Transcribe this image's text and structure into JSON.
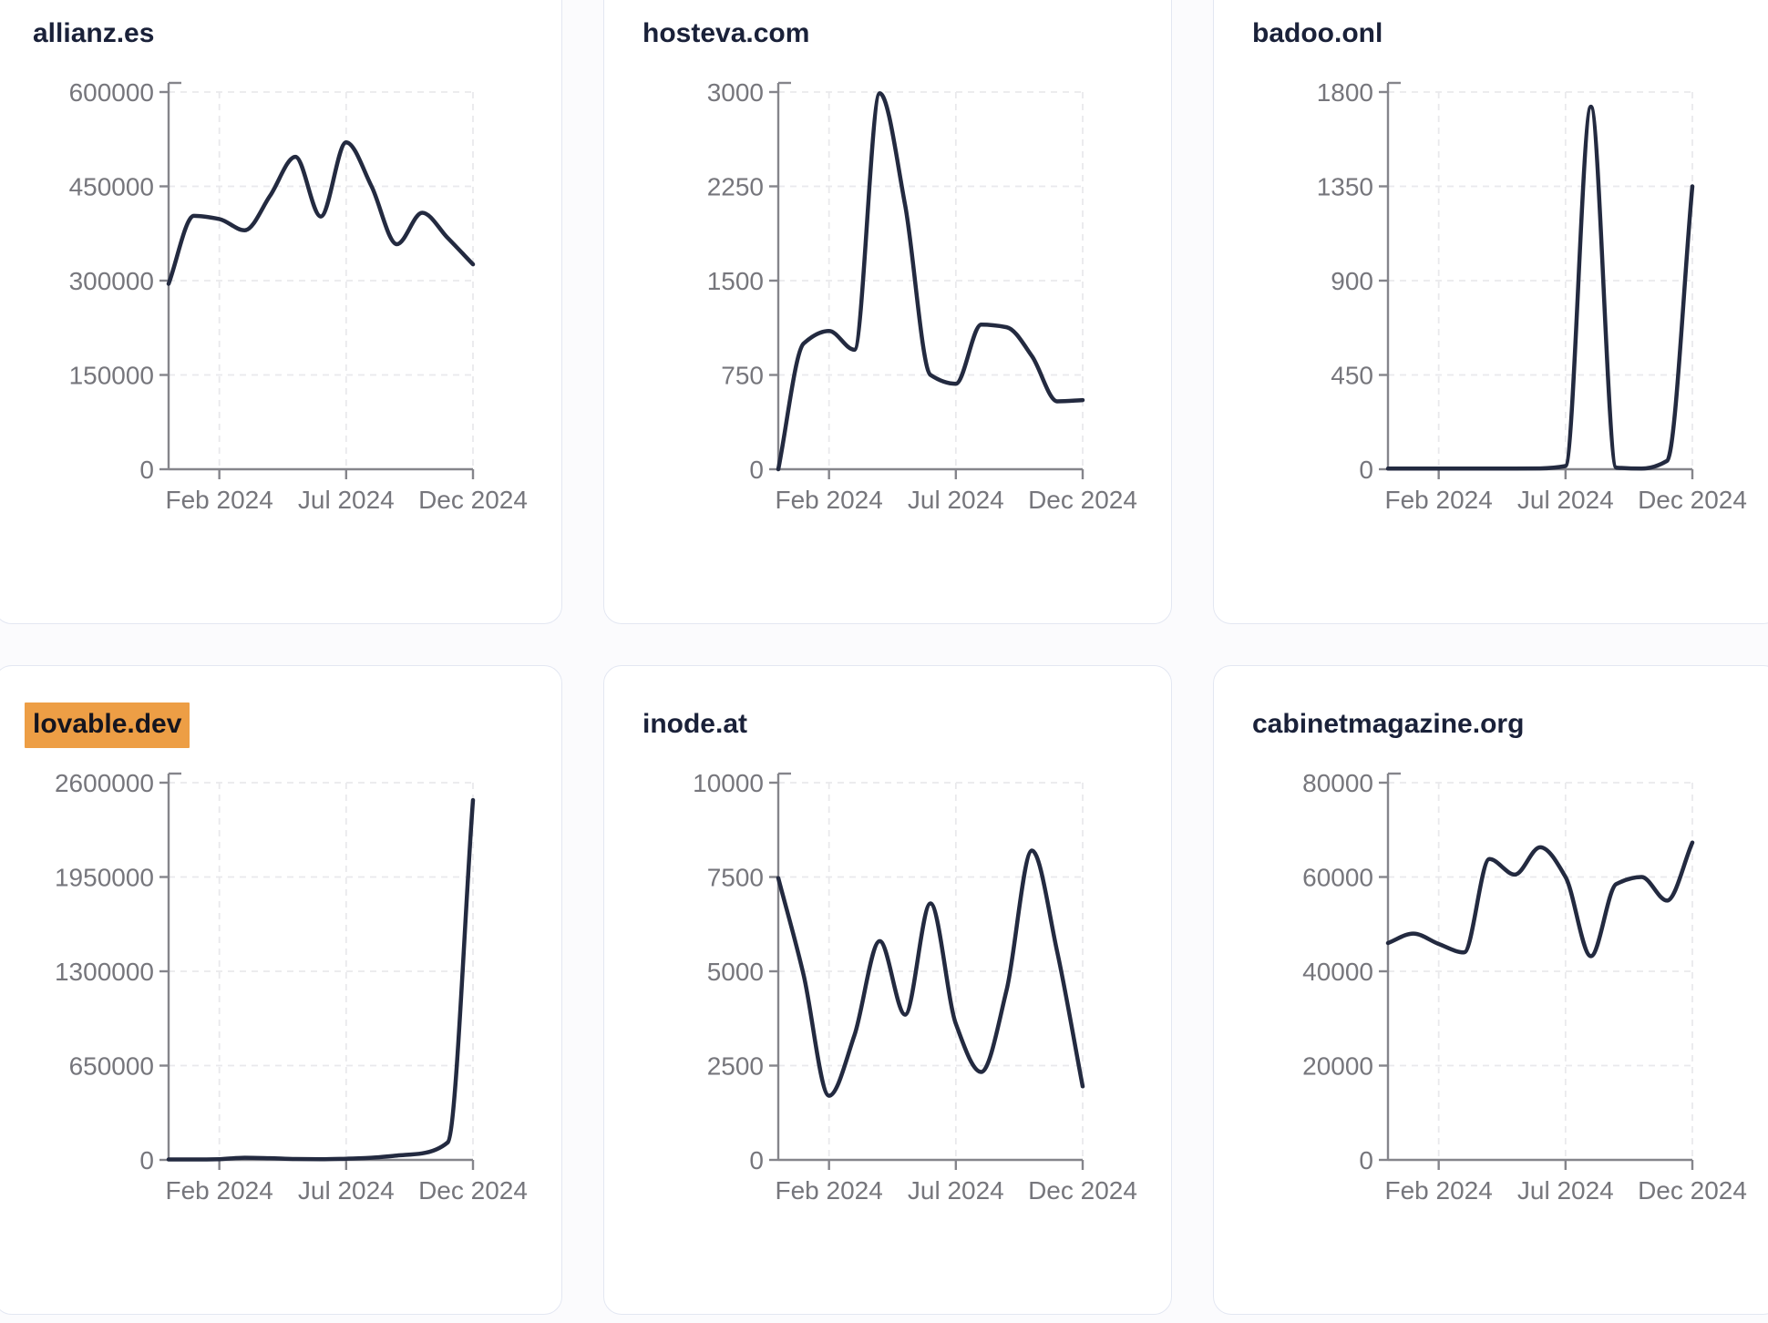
{
  "page": {
    "background": "#fbfbfd",
    "card_background": "#ffffff",
    "card_border_color": "#e3e7f2"
  },
  "colors": {
    "line": "#232a40",
    "title": "#1a2139",
    "tick_label": "#76767c",
    "axis": "#85858b",
    "grid": "#e9e9ec",
    "highlight": "#ed9e45"
  },
  "chart_data": [
    {
      "type": "line",
      "title": "allianz.es",
      "highlighted": false,
      "x": [
        "Dec 2023",
        "Jan 2024",
        "Feb 2024",
        "Mar 2024",
        "Apr 2024",
        "May 2024",
        "Jun 2024",
        "Jul 2024",
        "Aug 2024",
        "Sep 2024",
        "Oct 2024",
        "Nov 2024",
        "Dec 2024"
      ],
      "values": [
        295000,
        403000,
        398000,
        380000,
        435000,
        497000,
        402000,
        520000,
        450000,
        358000,
        408000,
        368000,
        326000
      ],
      "ylim": [
        0,
        600000
      ],
      "y_tick_labels": [
        "0",
        "150000",
        "300000",
        "450000",
        "600000"
      ],
      "x_tick_labels": [
        "Feb 2024",
        "Jul 2024",
        "Dec 2024"
      ],
      "x_tick_indices": [
        2,
        7,
        12
      ],
      "grid": true,
      "legend": "none"
    },
    {
      "type": "line",
      "title": "hosteva.com",
      "highlighted": false,
      "x": [
        "Dec 2023",
        "Jan 2024",
        "Feb 2024",
        "Mar 2024",
        "Apr 2024",
        "May 2024",
        "Jun 2024",
        "Jul 2024",
        "Aug 2024",
        "Sep 2024",
        "Oct 2024",
        "Nov 2024",
        "Dec 2024"
      ],
      "values": [
        0,
        1000,
        1100,
        950,
        2990,
        2100,
        750,
        680,
        1150,
        1130,
        900,
        540,
        550
      ],
      "ylim": [
        0,
        3000
      ],
      "y_tick_labels": [
        "0",
        "750",
        "1500",
        "2250",
        "3000"
      ],
      "x_tick_labels": [
        "Feb 2024",
        "Jul 2024",
        "Dec 2024"
      ],
      "x_tick_indices": [
        2,
        7,
        12
      ],
      "grid": true,
      "legend": "none"
    },
    {
      "type": "line",
      "title": "badoo.onl",
      "highlighted": false,
      "x": [
        "Dec 2023",
        "Jan 2024",
        "Feb 2024",
        "Mar 2024",
        "Apr 2024",
        "May 2024",
        "Jun 2024",
        "Jul 2024",
        "Aug 2024",
        "Sep 2024",
        "Oct 2024",
        "Nov 2024",
        "Dec 2024"
      ],
      "values": [
        3,
        3,
        3,
        3,
        3,
        3,
        4,
        15,
        1730,
        8,
        3,
        40,
        1350
      ],
      "ylim": [
        0,
        1800
      ],
      "y_tick_labels": [
        "0",
        "450",
        "900",
        "1350",
        "1800"
      ],
      "x_tick_labels": [
        "Feb 2024",
        "Jul 2024",
        "Dec 2024"
      ],
      "x_tick_indices": [
        2,
        7,
        12
      ],
      "grid": true,
      "legend": "none"
    },
    {
      "type": "line",
      "title": "lovable.dev",
      "highlighted": true,
      "x": [
        "Dec 2023",
        "Jan 2024",
        "Feb 2024",
        "Mar 2024",
        "Apr 2024",
        "May 2024",
        "Jun 2024",
        "Jul 2024",
        "Aug 2024",
        "Sep 2024",
        "Oct 2024",
        "Nov 2024",
        "Dec 2024"
      ],
      "values": [
        3000,
        3000,
        5000,
        15000,
        12000,
        6000,
        5000,
        8000,
        15000,
        30000,
        45000,
        120000,
        2480000
      ],
      "ylim": [
        0,
        2600000
      ],
      "y_tick_labels": [
        "0",
        "650000",
        "1300000",
        "1950000",
        "2600000"
      ],
      "x_tick_labels": [
        "Feb 2024",
        "Jul 2024",
        "Dec 2024"
      ],
      "x_tick_indices": [
        2,
        7,
        12
      ],
      "grid": true,
      "legend": "none"
    },
    {
      "type": "line",
      "title": "inode.at",
      "highlighted": false,
      "x": [
        "Dec 2023",
        "Jan 2024",
        "Feb 2024",
        "Mar 2024",
        "Apr 2024",
        "May 2024",
        "Jun 2024",
        "Jul 2024",
        "Aug 2024",
        "Sep 2024",
        "Oct 2024",
        "Nov 2024",
        "Dec 2024"
      ],
      "values": [
        7470,
        4900,
        1700,
        3300,
        5800,
        3850,
        6800,
        3610,
        2330,
        4500,
        8200,
        5500,
        1950
      ],
      "ylim": [
        0,
        10000
      ],
      "y_tick_labels": [
        "0",
        "2500",
        "5000",
        "7500",
        "10000"
      ],
      "x_tick_labels": [
        "Feb 2024",
        "Jul 2024",
        "Dec 2024"
      ],
      "x_tick_indices": [
        2,
        7,
        12
      ],
      "grid": true,
      "legend": "none"
    },
    {
      "type": "line",
      "title": "cabinetmagazine.org",
      "highlighted": false,
      "x": [
        "Dec 2023",
        "Jan 2024",
        "Feb 2024",
        "Mar 2024",
        "Apr 2024",
        "May 2024",
        "Jun 2024",
        "Jul 2024",
        "Aug 2024",
        "Sep 2024",
        "Oct 2024",
        "Nov 2024",
        "Dec 2024"
      ],
      "values": [
        46000,
        48000,
        45800,
        44000,
        63800,
        60500,
        66300,
        60000,
        43200,
        58500,
        60000,
        55000,
        67300
      ],
      "ylim": [
        0,
        80000
      ],
      "y_tick_labels": [
        "0",
        "20000",
        "40000",
        "60000",
        "80000"
      ],
      "x_tick_labels": [
        "Feb 2024",
        "Jul 2024",
        "Dec 2024"
      ],
      "x_tick_indices": [
        2,
        7,
        12
      ],
      "grid": true,
      "legend": "none"
    }
  ]
}
